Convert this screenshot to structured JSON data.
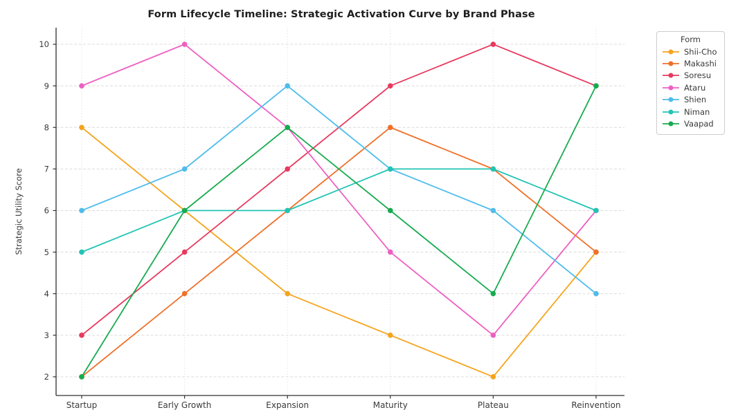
{
  "chart_data": {
    "type": "line",
    "title": "Form Lifecycle Timeline: Strategic Activation Curve by Brand Phase",
    "xlabel": "",
    "ylabel": "Strategic Utility Score",
    "legend_title": "Form",
    "legend_position": "upper right outside",
    "grid": true,
    "categories": [
      "Startup",
      "Early Growth",
      "Expansion",
      "Maturity",
      "Plateau",
      "Reinvention"
    ],
    "yticks": [
      2,
      3,
      4,
      5,
      6,
      7,
      8,
      9,
      10
    ],
    "ylim": [
      1.55,
      10.4
    ],
    "series": [
      {
        "name": "Shii-Cho",
        "color": "#F5A41C",
        "values": [
          8,
          6,
          4,
          3,
          2,
          5
        ]
      },
      {
        "name": "Makashi",
        "color": "#EF7029",
        "values": [
          2,
          4,
          6,
          8,
          7,
          5
        ]
      },
      {
        "name": "Soresu",
        "color": "#E8395E",
        "values": [
          3,
          5,
          7,
          9,
          10,
          9
        ]
      },
      {
        "name": "Ataru",
        "color": "#EE5FC2",
        "values": [
          9,
          10,
          8,
          5,
          3,
          6
        ]
      },
      {
        "name": "Shien",
        "color": "#4EBCEC",
        "values": [
          6,
          7,
          9,
          7,
          6,
          4
        ]
      },
      {
        "name": "Niman",
        "color": "#20C4B4",
        "values": [
          5,
          6,
          6,
          7,
          7,
          6
        ]
      },
      {
        "name": "Vaapad",
        "color": "#17AB4F",
        "values": [
          2,
          6,
          8,
          6,
          4,
          9
        ]
      }
    ]
  }
}
